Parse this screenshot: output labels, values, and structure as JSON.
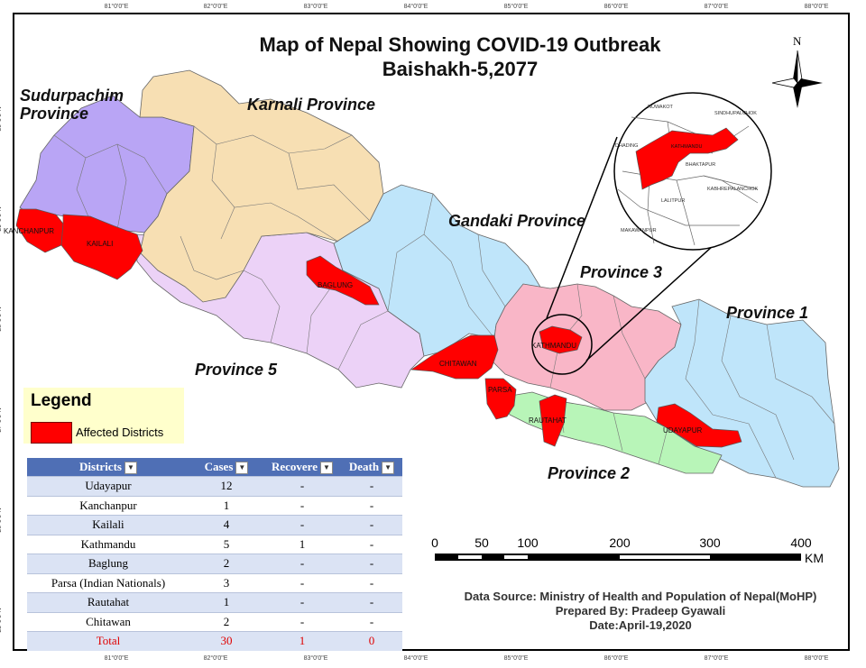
{
  "title": {
    "line1": "Map of Nepal Showing COVID-19 Outbreak",
    "line2": "Baishakh-5,2077"
  },
  "ticks": {
    "longitudes": [
      "81°0'0\"E",
      "82°0'0\"E",
      "83°0'0\"E",
      "84°0'0\"E",
      "85°0'0\"E",
      "86°0'0\"E",
      "87°0'0\"E",
      "88°0'0\"E"
    ],
    "latitudes": [
      "30°0'0\"N",
      "29°0'0\"N",
      "28°0'0\"N",
      "27°0'0\"N",
      "26°0'0\"N",
      "25°0'0\"N"
    ]
  },
  "provinces": {
    "sudurpachim": "Sudurpachim Province",
    "karnali": "Karnali Province",
    "gandaki": "Gandaki Province",
    "province3": "Province 3",
    "province1": "Province 1",
    "province5": "Province 5",
    "province2": "Province 2"
  },
  "colors": {
    "sudurpachim": "#b9a5f5",
    "karnali": "#f7dfb3",
    "gandaki": "#bfe5fa",
    "province3": "#f9b6c7",
    "province1": "#bfe5fa",
    "province5": "#ecd2f7",
    "province2": "#b8f5b8",
    "affected": "#ff0000"
  },
  "districts": {
    "kanchanpur": "KANCHANPUR",
    "kailali": "KAILALI",
    "baglung": "BAGLUNG",
    "chitawan": "CHITAWAN",
    "parsa": "PARSA",
    "rautahat": "RAUTAHAT",
    "kathmandu": "KATHMANDU",
    "udayapur": "UDAYAPUR"
  },
  "inset": {
    "nuwakot": "NUWAKOT",
    "sindhupalchok": "SINDHUPALCHOK",
    "dhading": "DHADING",
    "kathmandu": "KATHMANDU",
    "bhaktapur": "BHAKTAPUR",
    "kabhrepalanchok": "KABHREPALANCHOK",
    "lalitpur": "LALITPUR",
    "makawanpur": "MAKAWANPUR"
  },
  "north": "N",
  "legend": {
    "title": "Legend",
    "item": "Affected Districts"
  },
  "table": {
    "headers": [
      "Districts",
      "Cases",
      "Recovere",
      "Death"
    ],
    "rows": [
      [
        "Udayapur",
        "12",
        "-",
        "-"
      ],
      [
        "Kanchanpur",
        "1",
        "-",
        "-"
      ],
      [
        "Kailali",
        "4",
        "-",
        "-"
      ],
      [
        "Kathmandu",
        "5",
        "1",
        "-"
      ],
      [
        "Baglung",
        "2",
        "-",
        "-"
      ],
      [
        "Parsa (Indian Nationals)",
        "3",
        "-",
        "-"
      ],
      [
        "Rautahat",
        "1",
        "-",
        "-"
      ],
      [
        "Chitawan",
        "2",
        "-",
        "-"
      ],
      [
        "Total",
        "30",
        "1",
        "0"
      ]
    ]
  },
  "scale": {
    "labels": [
      "0",
      "50",
      "100",
      "200",
      "300",
      "400"
    ],
    "unit": "KM"
  },
  "source": {
    "data": "Data Source: Ministry of Health and Population of Nepal(MoHP)",
    "prepared": "Prepared By: Pradeep Gyawali",
    "date": "Date:April-19,2020"
  }
}
